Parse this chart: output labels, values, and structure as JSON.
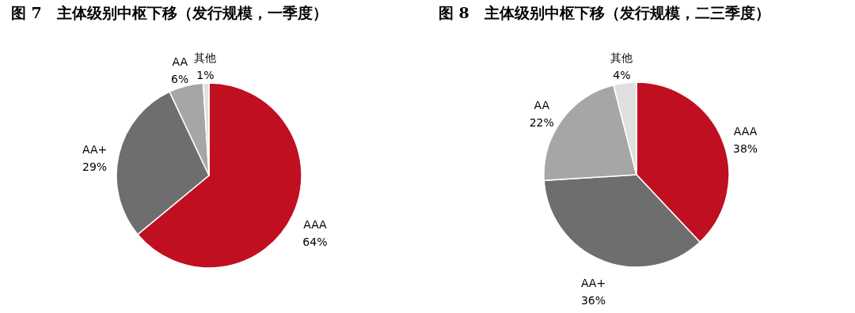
{
  "chart_data": [
    {
      "type": "pie",
      "title": "图 7　主体级别中枢下移（发行规模，一季度）",
      "categories": [
        "AAA",
        "AA+",
        "AA",
        "其他"
      ],
      "values": [
        64,
        29,
        6,
        1
      ],
      "value_labels": [
        "64%",
        "29%",
        "6%",
        "1%"
      ],
      "colors": [
        "#c00f20",
        "#6e6e6e",
        "#a6a6a6",
        "#e0e0e0"
      ],
      "legend": false
    },
    {
      "type": "pie",
      "title": "图 8　主体级别中枢下移（发行规模，二三季度）",
      "categories": [
        "AAA",
        "AA+",
        "AA",
        "其他"
      ],
      "values": [
        38,
        36,
        22,
        4
      ],
      "value_labels": [
        "38%",
        "36%",
        "22%",
        "4%"
      ],
      "colors": [
        "#c00f20",
        "#6e6e6e",
        "#a6a6a6",
        "#e0e0e0"
      ],
      "legend": false
    }
  ]
}
